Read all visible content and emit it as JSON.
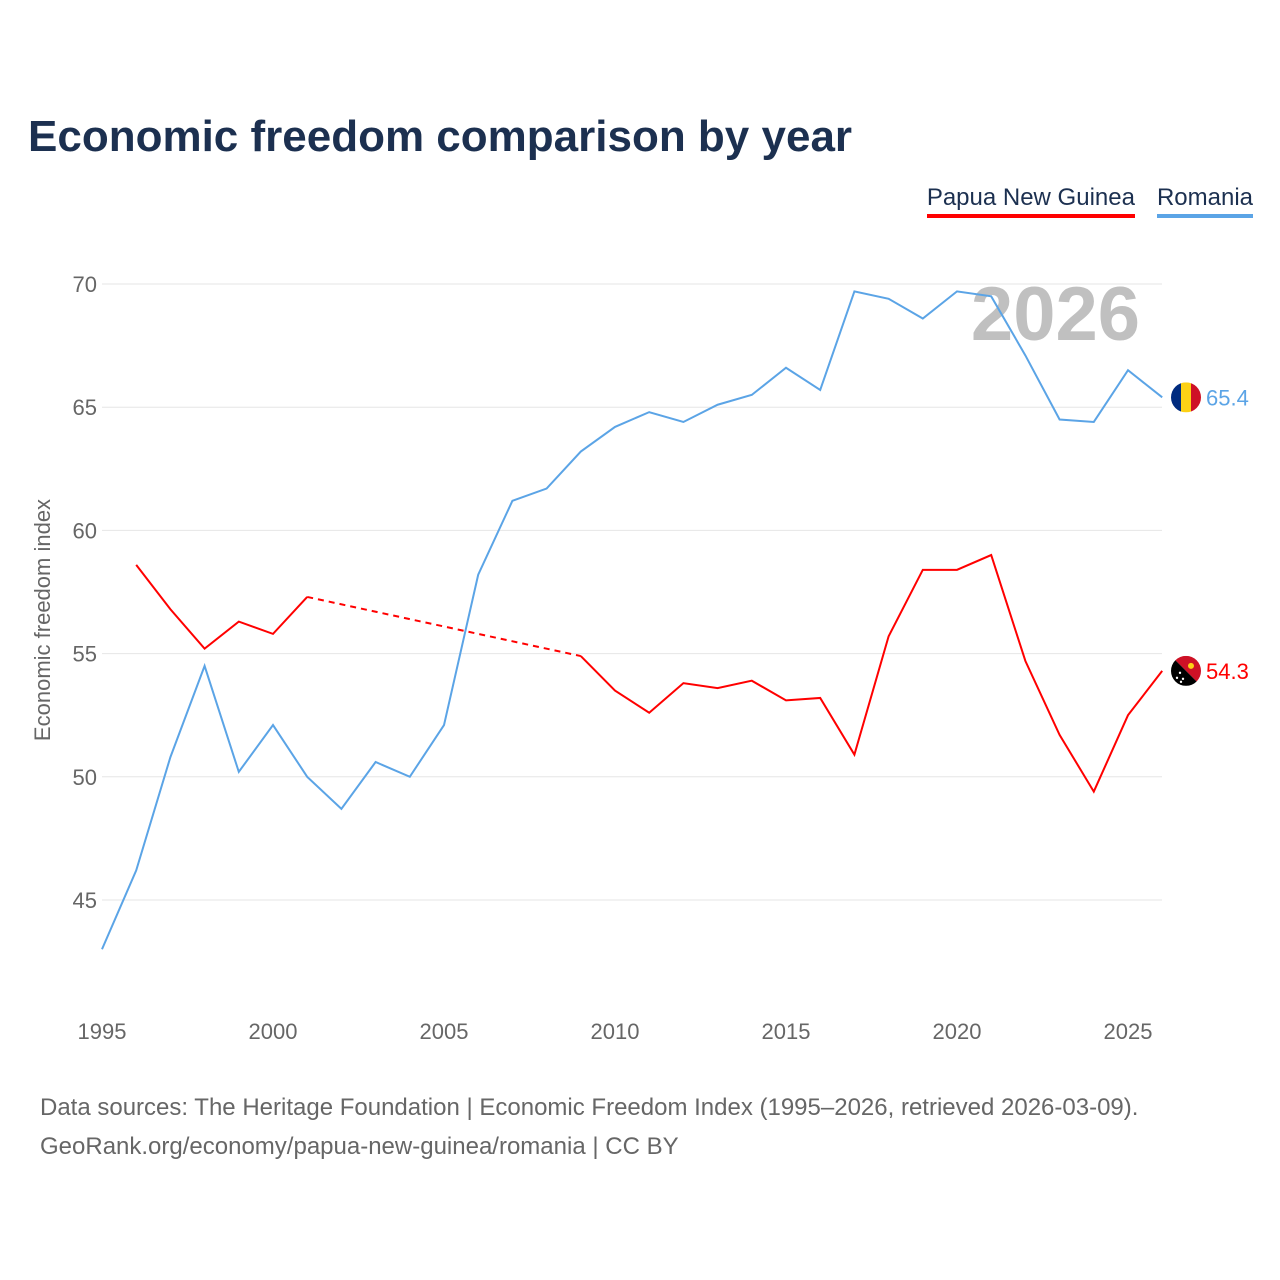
{
  "chart_data": {
    "type": "line",
    "title": "Economic freedom comparison by year",
    "xlabel": "",
    "ylabel": "Economic freedom index",
    "xlim": [
      1995,
      2026
    ],
    "ylim": [
      42,
      71
    ],
    "yticks": [
      45,
      50,
      55,
      60,
      65,
      70
    ],
    "xticks": [
      1995,
      2000,
      2005,
      2010,
      2015,
      2020,
      2025
    ],
    "grid": true,
    "legend_placement": "top-right",
    "watermark_year": "2026",
    "x": [
      1995,
      1996,
      1997,
      1998,
      1999,
      2000,
      2001,
      2002,
      2003,
      2004,
      2005,
      2006,
      2007,
      2008,
      2009,
      2010,
      2011,
      2012,
      2013,
      2014,
      2015,
      2016,
      2017,
      2018,
      2019,
      2020,
      2021,
      2022,
      2023,
      2024,
      2025,
      2026
    ],
    "series": [
      {
        "name": "Papua New Guinea",
        "color": "#ff0000",
        "end_label": "54.3",
        "values": [
          null,
          58.6,
          56.8,
          55.2,
          56.3,
          55.8,
          57.3,
          null,
          null,
          null,
          null,
          null,
          null,
          null,
          54.9,
          53.5,
          52.6,
          53.8,
          53.6,
          53.9,
          53.1,
          53.2,
          50.9,
          55.7,
          58.4,
          58.4,
          59.0,
          54.7,
          51.7,
          49.4,
          52.5,
          54.3
        ]
      },
      {
        "name": "Romania",
        "color": "#5ba4e6",
        "end_label": "65.4",
        "values": [
          43.0,
          46.2,
          50.8,
          54.5,
          50.2,
          52.1,
          50.0,
          48.7,
          50.6,
          50.0,
          52.1,
          58.2,
          61.2,
          61.7,
          63.2,
          64.2,
          64.8,
          64.4,
          65.1,
          65.5,
          66.6,
          65.7,
          69.7,
          69.4,
          68.6,
          69.7,
          69.5,
          67.1,
          64.5,
          64.4,
          66.5,
          65.4
        ]
      }
    ]
  },
  "footer": {
    "line1": "Data sources: The Heritage Foundation | Economic Freedom Index (1995–2026, retrieved 2026-03-09).",
    "line2": "GeoRank.org/economy/papua-new-guinea/romania | CC BY"
  }
}
